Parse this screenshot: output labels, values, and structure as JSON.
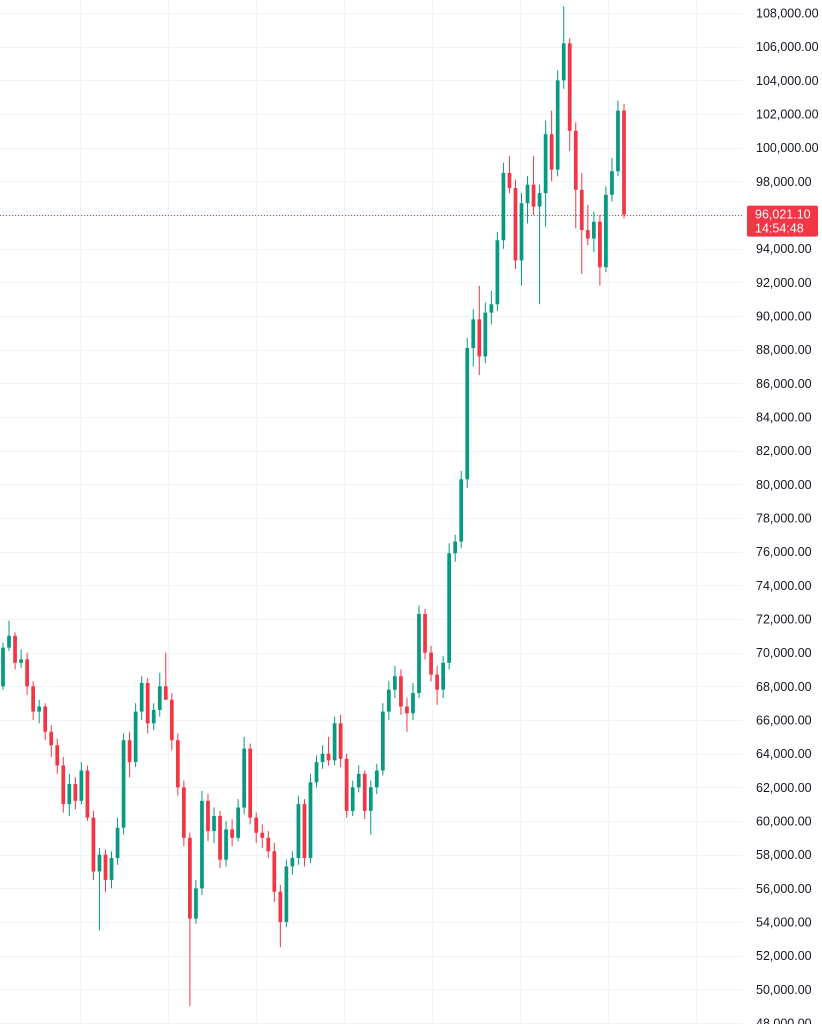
{
  "colors": {
    "background": "#ffffff",
    "grid": "#f0f3fa",
    "up": "#089981",
    "down": "#f23645",
    "axis_text": "#131722",
    "last_price": "#f23645"
  },
  "chart_data": {
    "type": "candlestick",
    "title": "",
    "xlabel": "",
    "ylabel": "",
    "ylim": [
      48000,
      108500
    ],
    "grid": true,
    "y_ticks": [
      "108,000.00",
      "106,000.00",
      "104,000.00",
      "102,000.00",
      "100,000.00",
      "98,000.00",
      "96,000.00",
      "94,000.00",
      "92,000.00",
      "90,000.00",
      "88,000.00",
      "86,000.00",
      "84,000.00",
      "82,000.00",
      "80,000.00",
      "78,000.00",
      "76,000.00",
      "74,000.00",
      "72,000.00",
      "70,000.00",
      "68,000.00",
      "66,000.00",
      "64,000.00",
      "62,000.00",
      "60,000.00",
      "58,000.00",
      "56,000.00",
      "54,000.00",
      "52,000.00",
      "50,000.00",
      "48,000.00"
    ],
    "y_tick_values": [
      108000,
      106000,
      104000,
      102000,
      100000,
      98000,
      96000,
      94000,
      92000,
      90000,
      88000,
      86000,
      84000,
      82000,
      80000,
      78000,
      76000,
      74000,
      72000,
      70000,
      68000,
      66000,
      64000,
      62000,
      60000,
      58000,
      56000,
      54000,
      52000,
      50000,
      48000
    ],
    "last_price": 96021.1,
    "last_price_label": "96,021.10",
    "countdown_label": "14:54:48",
    "candles": [
      {
        "o": 68000,
        "h": 70600,
        "l": 67800,
        "c": 70300
      },
      {
        "o": 70300,
        "h": 71900,
        "l": 70100,
        "c": 71000
      },
      {
        "o": 71000,
        "h": 71200,
        "l": 69000,
        "c": 69400
      },
      {
        "o": 69400,
        "h": 70200,
        "l": 69100,
        "c": 69600
      },
      {
        "o": 69600,
        "h": 70000,
        "l": 67500,
        "c": 68000
      },
      {
        "o": 68000,
        "h": 68300,
        "l": 66000,
        "c": 66500
      },
      {
        "o": 66500,
        "h": 67200,
        "l": 65800,
        "c": 66800
      },
      {
        "o": 66800,
        "h": 67000,
        "l": 64800,
        "c": 65300
      },
      {
        "o": 65300,
        "h": 65700,
        "l": 63800,
        "c": 64500
      },
      {
        "o": 64500,
        "h": 64900,
        "l": 62800,
        "c": 63300
      },
      {
        "o": 63300,
        "h": 63800,
        "l": 60500,
        "c": 61000
      },
      {
        "o": 61000,
        "h": 62800,
        "l": 60300,
        "c": 62200
      },
      {
        "o": 62200,
        "h": 62600,
        "l": 60700,
        "c": 61200
      },
      {
        "o": 61200,
        "h": 63500,
        "l": 61000,
        "c": 63000
      },
      {
        "o": 63000,
        "h": 63300,
        "l": 60000,
        "c": 60200
      },
      {
        "o": 60200,
        "h": 60600,
        "l": 56500,
        "c": 57000
      },
      {
        "o": 57000,
        "h": 58400,
        "l": 53500,
        "c": 58000
      },
      {
        "o": 58000,
        "h": 58300,
        "l": 55800,
        "c": 56500
      },
      {
        "o": 56500,
        "h": 58200,
        "l": 56000,
        "c": 57800
      },
      {
        "o": 57800,
        "h": 60200,
        "l": 57400,
        "c": 59600
      },
      {
        "o": 59600,
        "h": 65200,
        "l": 59200,
        "c": 64800
      },
      {
        "o": 64800,
        "h": 65300,
        "l": 62600,
        "c": 63500
      },
      {
        "o": 63500,
        "h": 67000,
        "l": 63200,
        "c": 66500
      },
      {
        "o": 66500,
        "h": 68600,
        "l": 66000,
        "c": 68200
      },
      {
        "o": 68200,
        "h": 68500,
        "l": 65200,
        "c": 65800
      },
      {
        "o": 65800,
        "h": 67000,
        "l": 65400,
        "c": 66600
      },
      {
        "o": 66600,
        "h": 68800,
        "l": 66200,
        "c": 68000
      },
      {
        "o": 68000,
        "h": 70000,
        "l": 67600,
        "c": 67200
      },
      {
        "o": 67200,
        "h": 67600,
        "l": 64200,
        "c": 64800
      },
      {
        "o": 64800,
        "h": 65200,
        "l": 61500,
        "c": 62000
      },
      {
        "o": 62000,
        "h": 62400,
        "l": 58500,
        "c": 59000
      },
      {
        "o": 59000,
        "h": 59300,
        "l": 49000,
        "c": 54200
      },
      {
        "o": 54200,
        "h": 56500,
        "l": 53900,
        "c": 56000
      },
      {
        "o": 56000,
        "h": 61800,
        "l": 55600,
        "c": 61200
      },
      {
        "o": 61200,
        "h": 61600,
        "l": 58800,
        "c": 59400
      },
      {
        "o": 59400,
        "h": 60800,
        "l": 58700,
        "c": 60300
      },
      {
        "o": 60300,
        "h": 60600,
        "l": 57200,
        "c": 57700
      },
      {
        "o": 57700,
        "h": 60000,
        "l": 57300,
        "c": 59500
      },
      {
        "o": 59500,
        "h": 60100,
        "l": 58500,
        "c": 59000
      },
      {
        "o": 59000,
        "h": 61300,
        "l": 58800,
        "c": 60800
      },
      {
        "o": 60800,
        "h": 65000,
        "l": 60400,
        "c": 64300
      },
      {
        "o": 64300,
        "h": 64600,
        "l": 59800,
        "c": 60200
      },
      {
        "o": 60200,
        "h": 60500,
        "l": 58700,
        "c": 59300
      },
      {
        "o": 59300,
        "h": 59800,
        "l": 58400,
        "c": 59000
      },
      {
        "o": 59000,
        "h": 59400,
        "l": 57800,
        "c": 58200
      },
      {
        "o": 58200,
        "h": 58700,
        "l": 55200,
        "c": 55800
      },
      {
        "o": 55800,
        "h": 56200,
        "l": 52500,
        "c": 54000
      },
      {
        "o": 54000,
        "h": 57700,
        "l": 53700,
        "c": 57300
      },
      {
        "o": 57300,
        "h": 58200,
        "l": 56800,
        "c": 57800
      },
      {
        "o": 57800,
        "h": 61500,
        "l": 57400,
        "c": 61000
      },
      {
        "o": 61000,
        "h": 61300,
        "l": 57300,
        "c": 57800
      },
      {
        "o": 57800,
        "h": 62800,
        "l": 57500,
        "c": 62300
      },
      {
        "o": 62300,
        "h": 63900,
        "l": 62000,
        "c": 63500
      },
      {
        "o": 63500,
        "h": 64500,
        "l": 63100,
        "c": 64000
      },
      {
        "o": 64000,
        "h": 65000,
        "l": 63300,
        "c": 63600
      },
      {
        "o": 63600,
        "h": 66200,
        "l": 63300,
        "c": 65800
      },
      {
        "o": 65800,
        "h": 66300,
        "l": 63200,
        "c": 63700
      },
      {
        "o": 63700,
        "h": 64000,
        "l": 60200,
        "c": 60600
      },
      {
        "o": 60600,
        "h": 62400,
        "l": 60300,
        "c": 62000
      },
      {
        "o": 62000,
        "h": 63300,
        "l": 61700,
        "c": 62800
      },
      {
        "o": 62800,
        "h": 63000,
        "l": 60100,
        "c": 60600
      },
      {
        "o": 60600,
        "h": 62400,
        "l": 59200,
        "c": 62000
      },
      {
        "o": 62000,
        "h": 63400,
        "l": 61600,
        "c": 63000
      },
      {
        "o": 63000,
        "h": 67000,
        "l": 62700,
        "c": 66500
      },
      {
        "o": 66500,
        "h": 68300,
        "l": 66000,
        "c": 67800
      },
      {
        "o": 67800,
        "h": 69200,
        "l": 67300,
        "c": 68600
      },
      {
        "o": 68600,
        "h": 69000,
        "l": 66300,
        "c": 66800
      },
      {
        "o": 66800,
        "h": 67300,
        "l": 65300,
        "c": 66400
      },
      {
        "o": 66400,
        "h": 68200,
        "l": 66000,
        "c": 67600
      },
      {
        "o": 67600,
        "h": 72800,
        "l": 67300,
        "c": 72300
      },
      {
        "o": 72300,
        "h": 72600,
        "l": 69600,
        "c": 70000
      },
      {
        "o": 70000,
        "h": 70400,
        "l": 68300,
        "c": 68700
      },
      {
        "o": 68700,
        "h": 69200,
        "l": 66900,
        "c": 67800
      },
      {
        "o": 67800,
        "h": 69800,
        "l": 67300,
        "c": 69400
      },
      {
        "o": 69400,
        "h": 76500,
        "l": 69000,
        "c": 75900
      },
      {
        "o": 75900,
        "h": 77000,
        "l": 75400,
        "c": 76600
      },
      {
        "o": 76600,
        "h": 80800,
        "l": 76200,
        "c": 80300
      },
      {
        "o": 80300,
        "h": 88700,
        "l": 79800,
        "c": 88100
      },
      {
        "o": 88100,
        "h": 90400,
        "l": 87000,
        "c": 89800
      },
      {
        "o": 89800,
        "h": 91800,
        "l": 86500,
        "c": 87600
      },
      {
        "o": 87600,
        "h": 90800,
        "l": 87200,
        "c": 90200
      },
      {
        "o": 90200,
        "h": 91500,
        "l": 89500,
        "c": 90700
      },
      {
        "o": 90700,
        "h": 95000,
        "l": 90300,
        "c": 94500
      },
      {
        "o": 94500,
        "h": 99100,
        "l": 94000,
        "c": 98500
      },
      {
        "o": 98500,
        "h": 99500,
        "l": 97300,
        "c": 97600
      },
      {
        "o": 97600,
        "h": 98100,
        "l": 92800,
        "c": 93300
      },
      {
        "o": 93300,
        "h": 97300,
        "l": 91800,
        "c": 96700
      },
      {
        "o": 96700,
        "h": 98300,
        "l": 95500,
        "c": 97800
      },
      {
        "o": 97800,
        "h": 99500,
        "l": 96000,
        "c": 96500
      },
      {
        "o": 96500,
        "h": 97800,
        "l": 90700,
        "c": 97300
      },
      {
        "o": 97300,
        "h": 101600,
        "l": 95300,
        "c": 100800
      },
      {
        "o": 100800,
        "h": 102200,
        "l": 98000,
        "c": 98700
      },
      {
        "o": 98700,
        "h": 104600,
        "l": 98300,
        "c": 104000
      },
      {
        "o": 104000,
        "h": 108400,
        "l": 103500,
        "c": 106200
      },
      {
        "o": 106200,
        "h": 106500,
        "l": 99800,
        "c": 101000
      },
      {
        "o": 101000,
        "h": 101500,
        "l": 95200,
        "c": 97500
      },
      {
        "o": 97500,
        "h": 98500,
        "l": 92500,
        "c": 95100
      },
      {
        "o": 95100,
        "h": 96600,
        "l": 94200,
        "c": 94600
      },
      {
        "o": 94600,
        "h": 96200,
        "l": 93800,
        "c": 95600
      },
      {
        "o": 95600,
        "h": 96000,
        "l": 91800,
        "c": 92900
      },
      {
        "o": 92900,
        "h": 97700,
        "l": 92600,
        "c": 97200
      },
      {
        "o": 97200,
        "h": 99400,
        "l": 96800,
        "c": 98600
      },
      {
        "o": 98600,
        "h": 102800,
        "l": 98300,
        "c": 102200
      },
      {
        "o": 102200,
        "h": 102600,
        "l": 95800,
        "c": 96021.1
      }
    ]
  }
}
